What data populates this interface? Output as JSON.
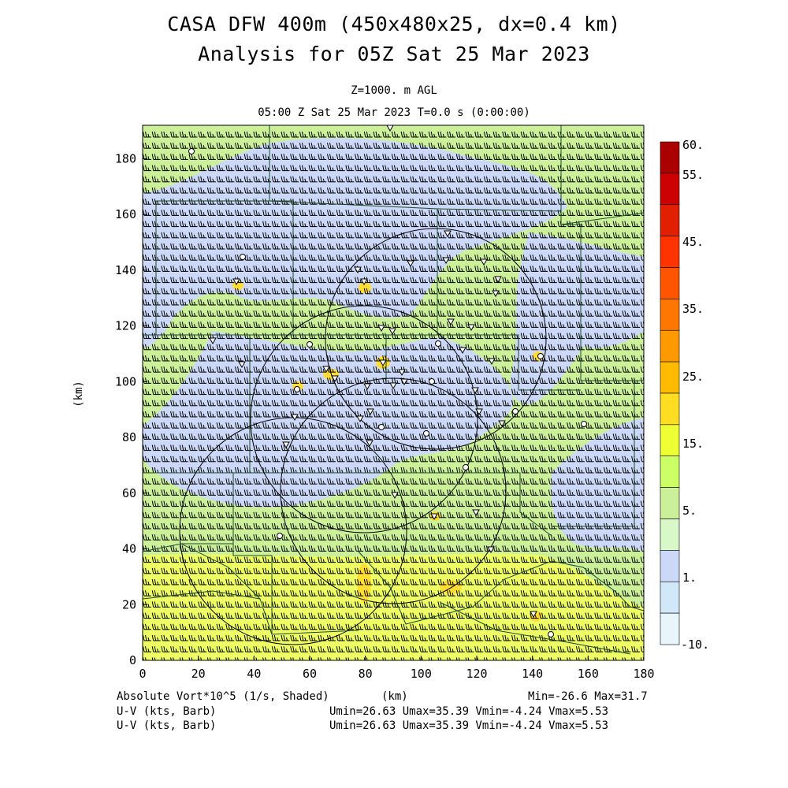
{
  "title_line1": "CASA DFW 400m (450x480x25, dx=0.4 km)",
  "title_line2": "Analysis for 05Z Sat 25 Mar 2023",
  "level_label": "Z=1000. m AGL",
  "time_label": "05:00 Z Sat 25 Mar 2023   T=0.0 s (0:00:00)",
  "y_axis_label": "(km)",
  "x_axis_label": "(km)",
  "x_ticks": [
    "0",
    "20",
    "40",
    "60",
    "80",
    "100",
    "120",
    "140",
    "160",
    "180"
  ],
  "y_ticks": [
    "0",
    "20",
    "40",
    "60",
    "80",
    "100",
    "120",
    "140",
    "160",
    "180"
  ],
  "colorbar": {
    "labels": [
      "60.",
      "55.",
      "45.",
      "35.",
      "25.",
      "15.",
      "5.",
      "1.",
      "-10."
    ],
    "colors": [
      "#aa0000",
      "#cc0000",
      "#e02000",
      "#ff3300",
      "#ff5500",
      "#ff7700",
      "#ff9900",
      "#ffbb00",
      "#ffdd22",
      "#eeff33",
      "#ccff66",
      "#ccf099",
      "#d8f8c8",
      "#ccd8f8",
      "#d0e8f8",
      "#e8f6fc"
    ]
  },
  "footer": {
    "shaded_label": "Absolute Vort*10^5 (1/s, Shaded)",
    "barb_label_1": "U-V (kts, Barb)",
    "barb_label_2": "U-V (kts, Barb)",
    "minmax": "Min=-26.6 Max=31.7",
    "uv_stats_1": "Umin=26.63 Umax=35.39 Vmin=-4.24 Vmax=5.53",
    "uv_stats_2": "Umin=26.63 Umax=35.39 Vmin=-4.24 Vmax=5.53"
  },
  "map_fill_colors": {
    "background": "#ccf099",
    "negative_region": "#ccd8f8",
    "positive_region": "#eeff66",
    "maxima": "#ffdd33"
  }
}
